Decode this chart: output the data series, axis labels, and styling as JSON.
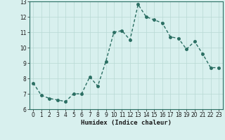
{
  "x": [
    0,
    1,
    2,
    3,
    4,
    5,
    6,
    7,
    8,
    9,
    10,
    11,
    12,
    13,
    14,
    15,
    16,
    17,
    18,
    19,
    20,
    21,
    22,
    23
  ],
  "y": [
    7.7,
    6.9,
    6.7,
    6.6,
    6.5,
    7.0,
    7.0,
    8.1,
    7.5,
    9.1,
    11.0,
    11.1,
    10.5,
    12.8,
    12.0,
    11.8,
    11.6,
    10.7,
    10.6,
    9.9,
    10.4,
    9.6,
    8.7,
    8.7
  ],
  "xlim": [
    -0.5,
    23.5
  ],
  "ylim": [
    6,
    13
  ],
  "yticks": [
    6,
    7,
    8,
    9,
    10,
    11,
    12,
    13
  ],
  "xticks": [
    0,
    1,
    2,
    3,
    4,
    5,
    6,
    7,
    8,
    9,
    10,
    11,
    12,
    13,
    14,
    15,
    16,
    17,
    18,
    19,
    20,
    21,
    22,
    23
  ],
  "xlabel": "Humidex (Indice chaleur)",
  "line_color": "#2a6e62",
  "bg_color": "#d8f0ee",
  "grid_color": "#b8d8d4",
  "marker_size": 2.5,
  "linewidth": 1.0,
  "tick_fontsize": 5.5,
  "xlabel_fontsize": 6.5
}
